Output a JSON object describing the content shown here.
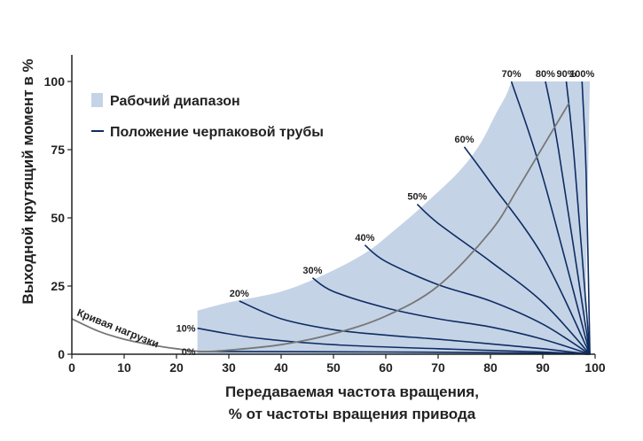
{
  "chart_data": {
    "type": "line",
    "xlabel_line1": "Передаваемая частота вращения,",
    "xlabel_line2": "% от частоты вращения привода",
    "ylabel": "Выходной крутящий момент в %",
    "xlim": [
      0,
      100
    ],
    "ylim": [
      0,
      110
    ],
    "xticks": [
      0,
      10,
      20,
      30,
      40,
      50,
      60,
      70,
      80,
      90,
      100
    ],
    "yticks": [
      0,
      25,
      50,
      75,
      100
    ],
    "legend": {
      "placement": "top-left",
      "range_label": "Рабочий диапазон",
      "line_label": "Положение черпаковой трубы"
    },
    "colors": {
      "range_fill": "#c5d3e6",
      "scoop_line": "#0d2d63",
      "load_curve": "#777777",
      "axis": "#222222"
    },
    "operating_range": {
      "lower": [
        [
          24,
          0
        ],
        [
          98,
          0
        ],
        [
          99,
          100
        ]
      ],
      "upper": [
        [
          24,
          16
        ],
        [
          30,
          19
        ],
        [
          40,
          23
        ],
        [
          48,
          29
        ],
        [
          56,
          37
        ],
        [
          62,
          46
        ],
        [
          68,
          56
        ],
        [
          74,
          67
        ],
        [
          78,
          77
        ],
        [
          81,
          88
        ],
        [
          83,
          95
        ],
        [
          84,
          100
        ]
      ]
    },
    "load_curve": {
      "label": "Кривая нагрузки",
      "points": [
        [
          0,
          13
        ],
        [
          5,
          8.5
        ],
        [
          10,
          5.5
        ],
        [
          15,
          3.5
        ],
        [
          20,
          2
        ],
        [
          25,
          1
        ],
        [
          30,
          1.5
        ],
        [
          40,
          3.5
        ],
        [
          50,
          7.5
        ],
        [
          60,
          14
        ],
        [
          70,
          25
        ],
        [
          80,
          45
        ],
        [
          85,
          60
        ],
        [
          90,
          76
        ],
        [
          95,
          92
        ]
      ]
    },
    "scoop_positions": [
      {
        "label": "0%",
        "points": [
          [
            24,
            1
          ],
          [
            60,
            0.8
          ],
          [
            90,
            0.4
          ],
          [
            99,
            0
          ]
        ]
      },
      {
        "label": "10%",
        "points": [
          [
            24,
            9.5
          ],
          [
            35,
            6
          ],
          [
            50,
            3.5
          ],
          [
            70,
            2
          ],
          [
            90,
            0.8
          ],
          [
            99,
            0
          ]
        ]
      },
      {
        "label": "20%",
        "points": [
          [
            32,
            19.5
          ],
          [
            40,
            13
          ],
          [
            50,
            9
          ],
          [
            60,
            7
          ],
          [
            70,
            5.5
          ],
          [
            80,
            3.8
          ],
          [
            90,
            2
          ],
          [
            99,
            0
          ]
        ]
      },
      {
        "label": "30%",
        "points": [
          [
            46,
            28
          ],
          [
            50,
            23
          ],
          [
            60,
            17
          ],
          [
            70,
            13
          ],
          [
            80,
            10
          ],
          [
            90,
            5.5
          ],
          [
            99,
            0
          ]
        ]
      },
      {
        "label": "40%",
        "points": [
          [
            56,
            40
          ],
          [
            60,
            34
          ],
          [
            70,
            25.5
          ],
          [
            80,
            19.5
          ],
          [
            90,
            11
          ],
          [
            99,
            0
          ]
        ]
      },
      {
        "label": "50%",
        "points": [
          [
            66,
            55
          ],
          [
            70,
            48
          ],
          [
            80,
            34
          ],
          [
            90,
            19
          ],
          [
            99,
            0
          ]
        ]
      },
      {
        "label": "60%",
        "points": [
          [
            75,
            76
          ],
          [
            80,
            63
          ],
          [
            90,
            36
          ],
          [
            99,
            0
          ]
        ]
      },
      {
        "label": "70%",
        "points": [
          [
            84,
            100
          ],
          [
            90,
            65
          ],
          [
            99,
            0
          ]
        ]
      },
      {
        "label": "80%",
        "points": [
          [
            90.5,
            100
          ],
          [
            93,
            75
          ],
          [
            99,
            0
          ]
        ]
      },
      {
        "label": "90%",
        "points": [
          [
            94.5,
            100
          ],
          [
            96,
            72
          ],
          [
            99,
            0
          ]
        ]
      },
      {
        "label": "100%",
        "points": [
          [
            97.5,
            100
          ],
          [
            98.3,
            65
          ],
          [
            99,
            0
          ]
        ]
      }
    ]
  }
}
